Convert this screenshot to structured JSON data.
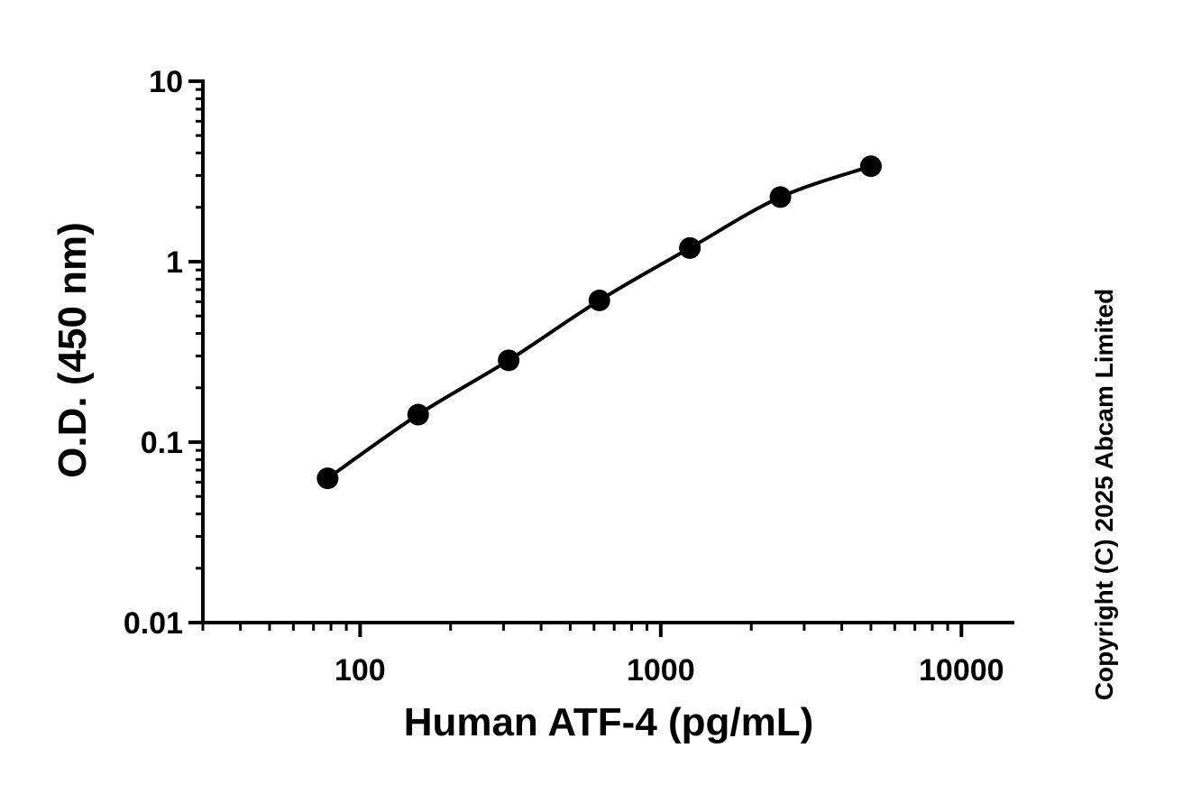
{
  "chart_data": {
    "type": "scatter",
    "title": "",
    "xlabel": "Human ATF-4 (pg/mL)",
    "ylabel": "O.D. (450 nm)",
    "x_scale": "log",
    "y_scale": "log",
    "xlim": [
      30,
      15000
    ],
    "ylim": [
      0.01,
      10
    ],
    "x_tick_labels": [
      "100",
      "1000",
      "10000"
    ],
    "y_tick_labels": [
      "0.01",
      "0.1",
      "1",
      "10"
    ],
    "grid": false,
    "legend": "none",
    "marker_color": "#000000",
    "series": [
      {
        "x": [
          78,
          156,
          312,
          625,
          1250,
          2500,
          5000
        ],
        "y": [
          0.063,
          0.142,
          0.284,
          0.61,
          1.19,
          2.28,
          3.38
        ],
        "fit_curve": true
      }
    ]
  },
  "copyright": "Copyright (C) 2025 Abcam Limited"
}
